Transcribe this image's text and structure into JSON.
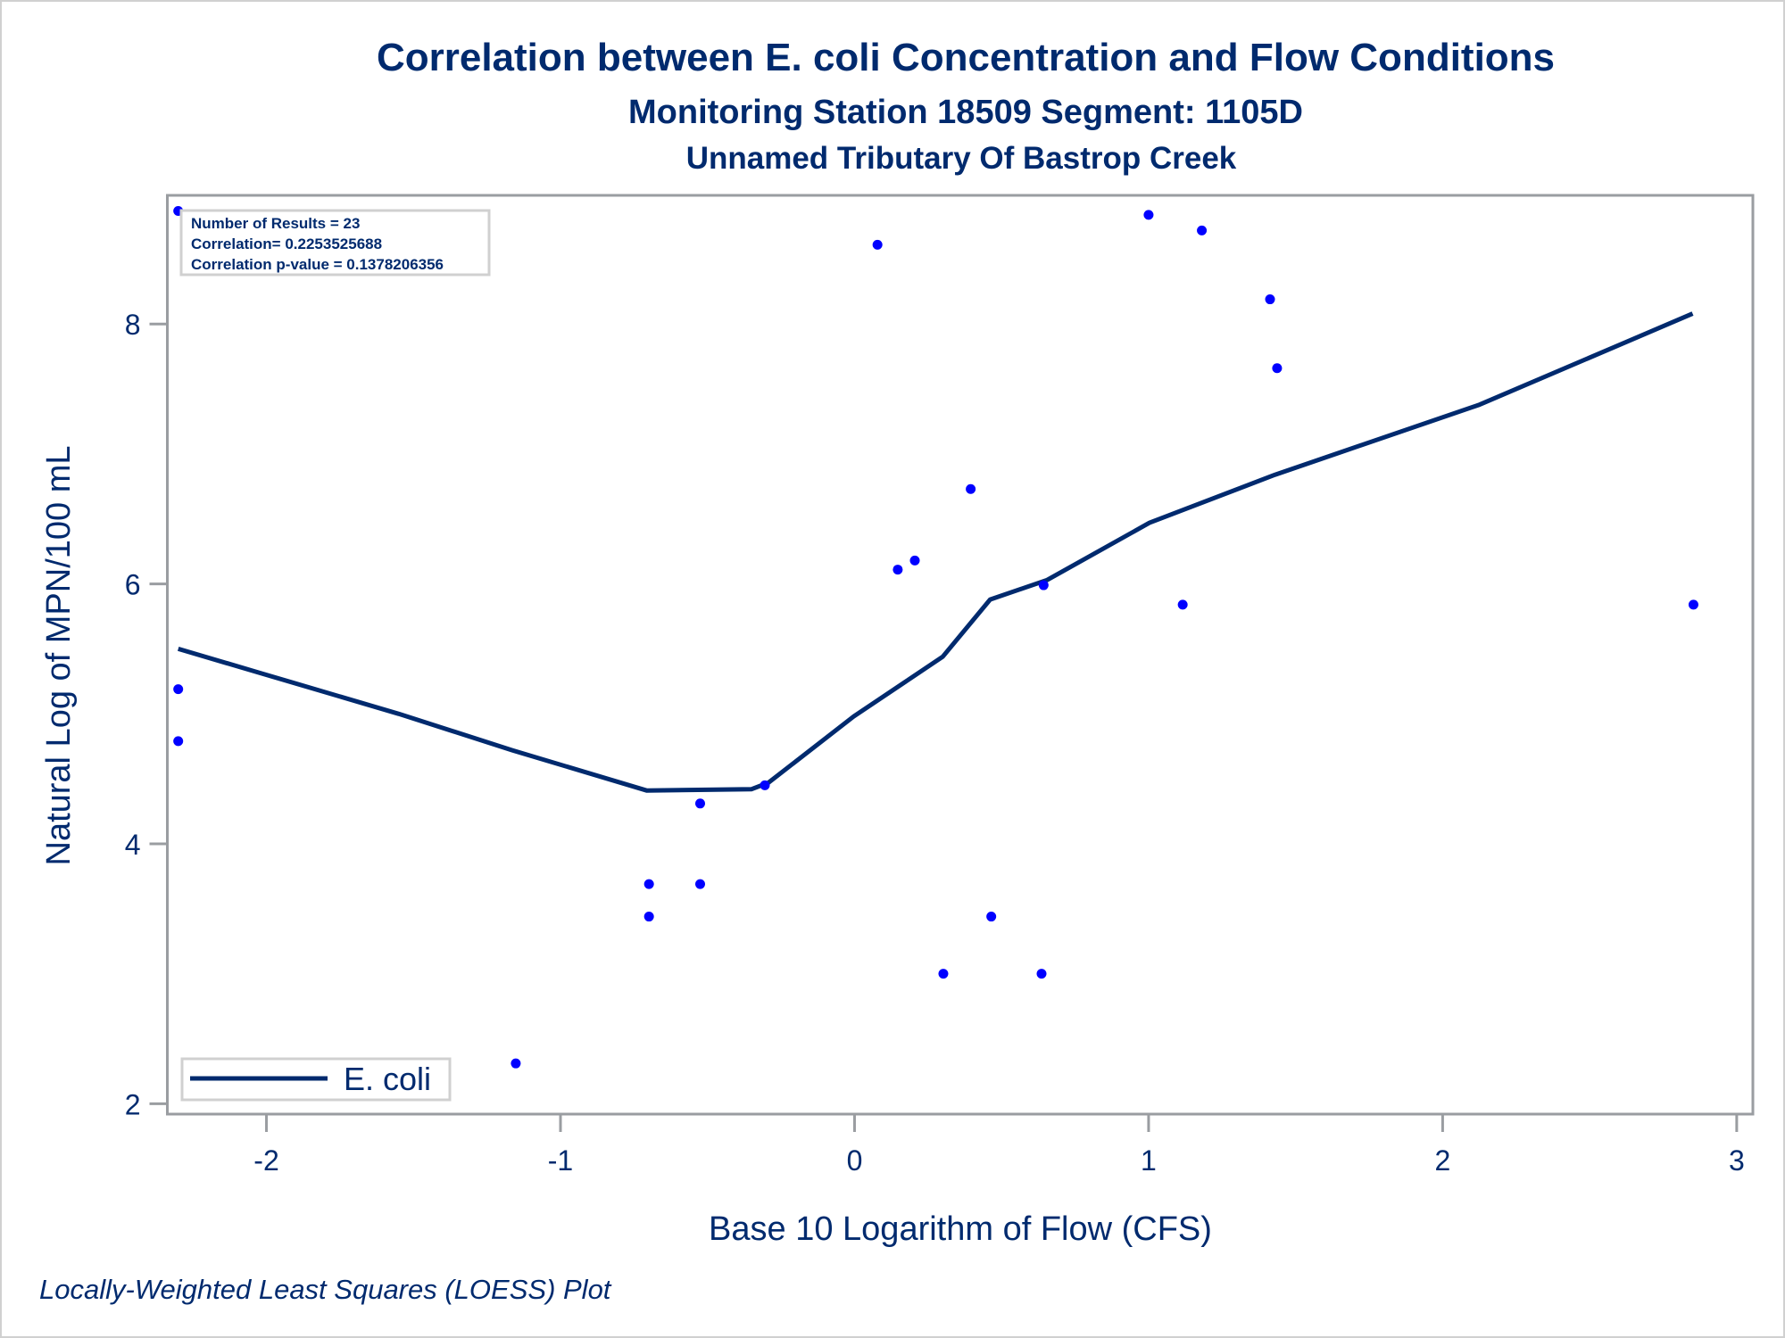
{
  "chart_data": {
    "type": "scatter",
    "title": "Correlation between E. coli Concentration and Flow Conditions",
    "subtitle": "Monitoring Station 18509 Segment: 1105D",
    "subtitle2": "Unnamed Tributary Of Bastrop Creek",
    "xlabel": "Base 10 Logarithm of Flow (CFS)",
    "ylabel": "Natural Log of MPN/100 mL",
    "footnote": "Locally-Weighted Least Squares (LOESS) Plot",
    "xlim": [
      -2.337,
      3.055
    ],
    "ylim": [
      1.92,
      8.99
    ],
    "xticks": [
      -2,
      -1,
      0,
      1,
      2,
      3
    ],
    "yticks": [
      2,
      4,
      6,
      8
    ],
    "xtick_labels": [
      "-2",
      "-1",
      "0",
      "1",
      "2",
      "3"
    ],
    "ytick_labels": [
      "2",
      "4",
      "6",
      "8"
    ],
    "grid": false,
    "stats": {
      "line1": "Number of Results = 23",
      "line2": "Correlation= 0.2253525688",
      "line3": "Correlation p-value = 0.1378206356"
    },
    "legend": {
      "position": "bottom-left",
      "label": "E. coli"
    },
    "colors": {
      "points": "#0000ff",
      "line": "#002a6e",
      "text": "#002a6e",
      "axis": "#9a9da1"
    },
    "points": [
      [
        -2.3,
        8.87
      ],
      [
        -2.3,
        5.19
      ],
      [
        -2.3,
        4.79
      ],
      [
        -1.152,
        2.31
      ],
      [
        -0.699,
        3.69
      ],
      [
        -0.699,
        3.44
      ],
      [
        -0.525,
        4.31
      ],
      [
        -0.525,
        3.69
      ],
      [
        -0.305,
        4.45
      ],
      [
        0.078,
        8.61
      ],
      [
        0.147,
        6.11
      ],
      [
        0.205,
        6.18
      ],
      [
        0.395,
        6.73
      ],
      [
        0.302,
        3.0
      ],
      [
        0.465,
        3.44
      ],
      [
        0.636,
        3.0
      ],
      [
        0.643,
        5.99
      ],
      [
        1.0,
        8.84
      ],
      [
        1.116,
        5.84
      ],
      [
        1.181,
        8.72
      ],
      [
        1.413,
        8.19
      ],
      [
        1.437,
        7.66
      ],
      [
        2.853,
        5.84
      ]
    ],
    "loess": [
      [
        -2.3,
        5.5
      ],
      [
        -2.015,
        5.31
      ],
      [
        -1.55,
        5.0
      ],
      [
        -1.164,
        4.72
      ],
      [
        -0.707,
        4.41
      ],
      [
        -0.351,
        4.42
      ],
      [
        -0.293,
        4.47
      ],
      [
        -0.003,
        4.98
      ],
      [
        0.3,
        5.44
      ],
      [
        0.461,
        5.88
      ],
      [
        0.655,
        6.03
      ],
      [
        1.003,
        6.47
      ],
      [
        1.43,
        6.84
      ],
      [
        2.126,
        7.38
      ],
      [
        2.85,
        8.08
      ]
    ]
  }
}
